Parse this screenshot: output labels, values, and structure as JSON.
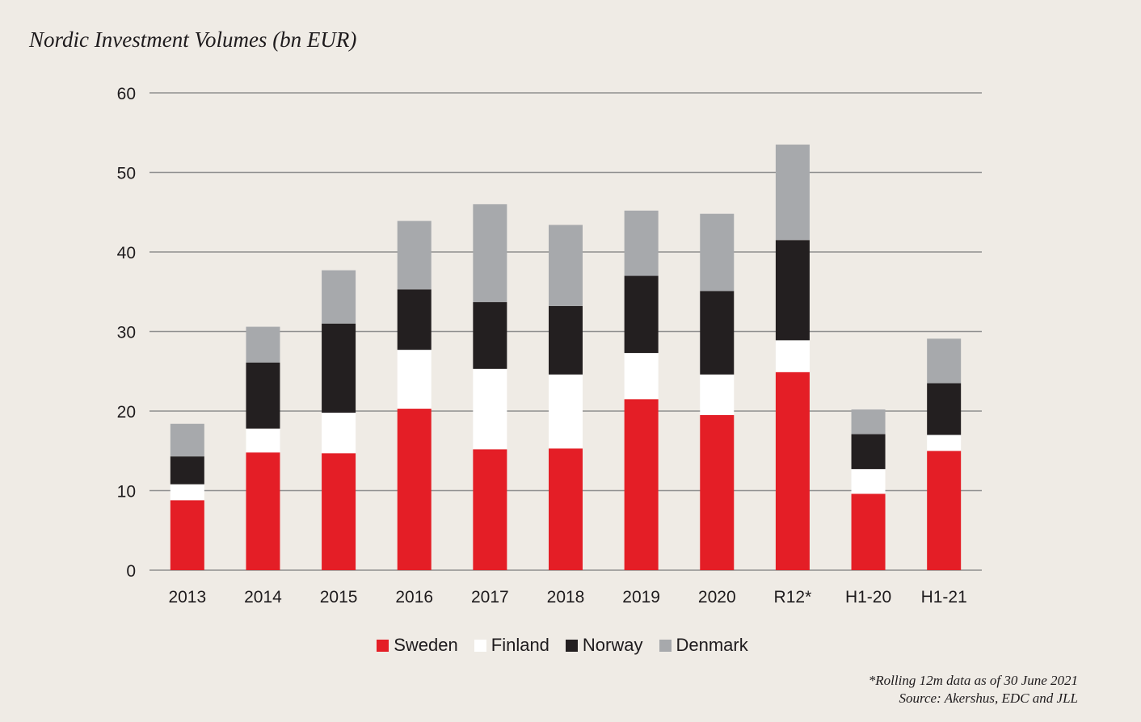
{
  "chart_data": {
    "type": "bar",
    "stacked": true,
    "title": "Nordic Investment Volumes (bn EUR)",
    "categories": [
      "2013",
      "2014",
      "2015",
      "2016",
      "2017",
      "2018",
      "2019",
      "2020",
      "R12*",
      "H1-20",
      "H1-21"
    ],
    "series": [
      {
        "name": "Sweden",
        "color": "#e41e26",
        "values": [
          8.8,
          14.8,
          14.7,
          20.3,
          15.2,
          15.3,
          21.5,
          19.5,
          24.9,
          9.6,
          15.0
        ]
      },
      {
        "name": "Finland",
        "color": "#ffffff",
        "values": [
          2.0,
          3.0,
          5.1,
          7.4,
          10.1,
          9.3,
          5.8,
          5.1,
          4.0,
          3.1,
          2.0
        ]
      },
      {
        "name": "Norway",
        "color": "#231f20",
        "values": [
          3.5,
          8.3,
          11.2,
          7.6,
          8.4,
          8.6,
          9.7,
          10.5,
          12.6,
          4.4,
          6.5
        ]
      },
      {
        "name": "Denmark",
        "color": "#a7a9ac",
        "values": [
          4.1,
          4.5,
          6.7,
          8.6,
          12.3,
          10.2,
          8.2,
          9.7,
          12.0,
          3.1,
          5.6
        ]
      }
    ],
    "ylim": [
      0,
      60
    ],
    "yticks": [
      0,
      10,
      20,
      30,
      40,
      50,
      60
    ],
    "grid": true,
    "legend_position": "bottom"
  },
  "footnote": {
    "line1": "*Rolling 12m data as of 30 June 2021",
    "line2": "Source: Akershus, EDC and JLL"
  }
}
